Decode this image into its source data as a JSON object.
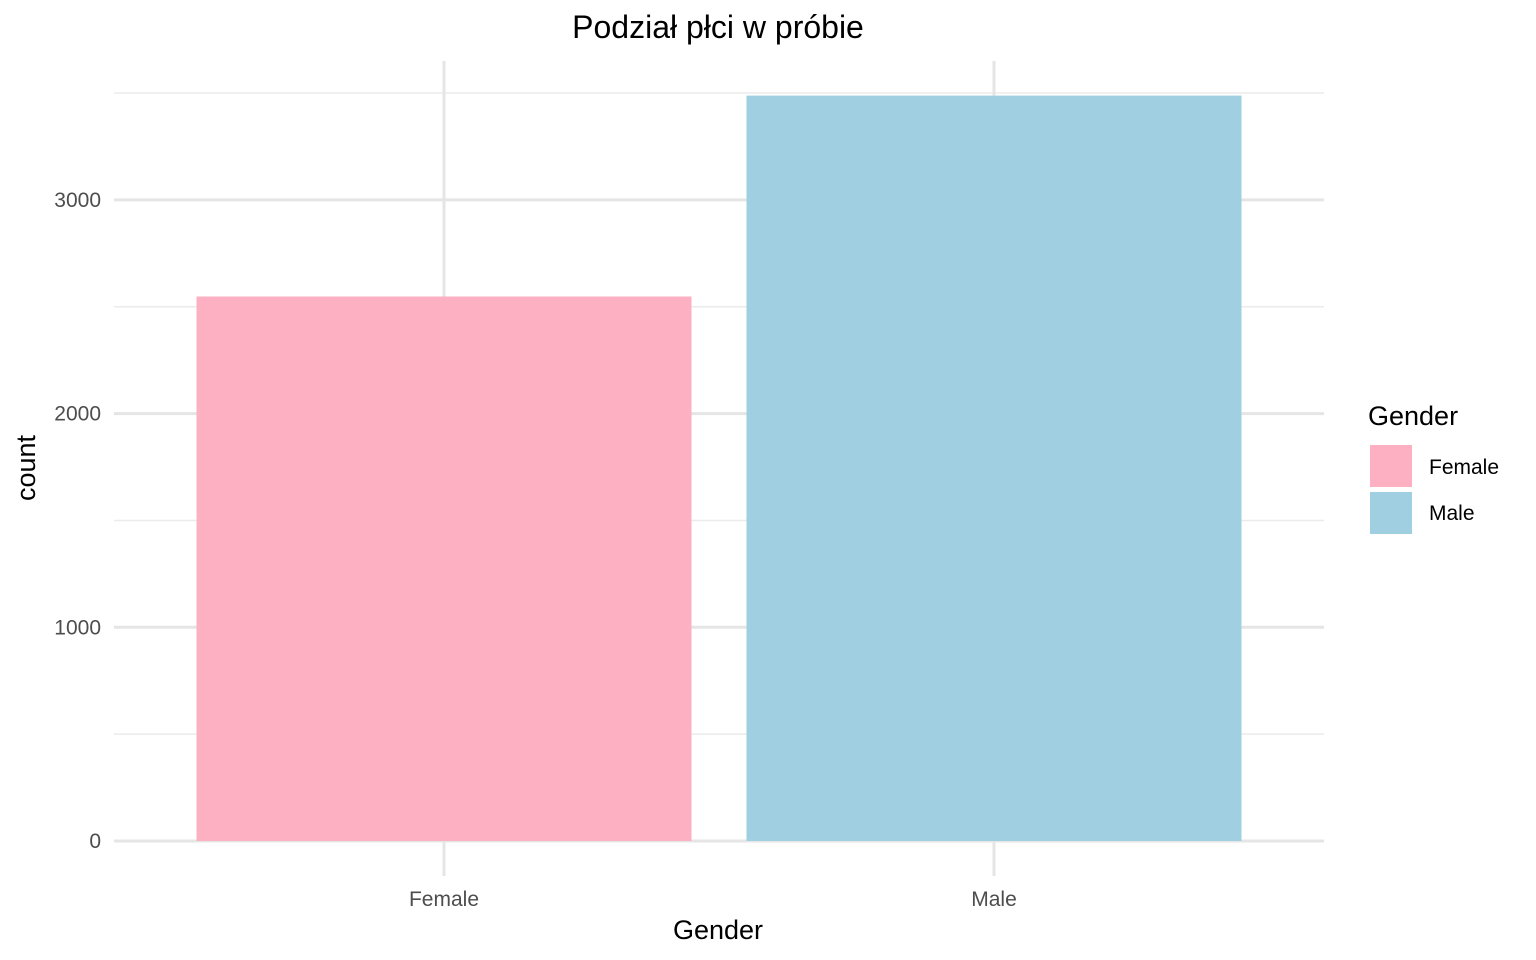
{
  "chart_data": {
    "type": "bar",
    "title": "Podział płci w próbie",
    "xlabel": "Gender",
    "ylabel": "count",
    "categories": [
      "Female",
      "Male"
    ],
    "values": [
      2548,
      3488
    ],
    "colors": [
      "#FCB0C1",
      "#9FCFE0"
    ],
    "ylim": [
      0,
      3650
    ],
    "yticks": [
      0,
      1000,
      2000,
      3000
    ],
    "ytick_labels": [
      "0",
      "1000",
      "2000",
      "3000"
    ],
    "grid": true,
    "legend": {
      "title": "Gender",
      "position": "right",
      "items": [
        {
          "label": "Female",
          "color": "#FCB0C1"
        },
        {
          "label": "Male",
          "color": "#9FCFE0"
        }
      ]
    }
  }
}
